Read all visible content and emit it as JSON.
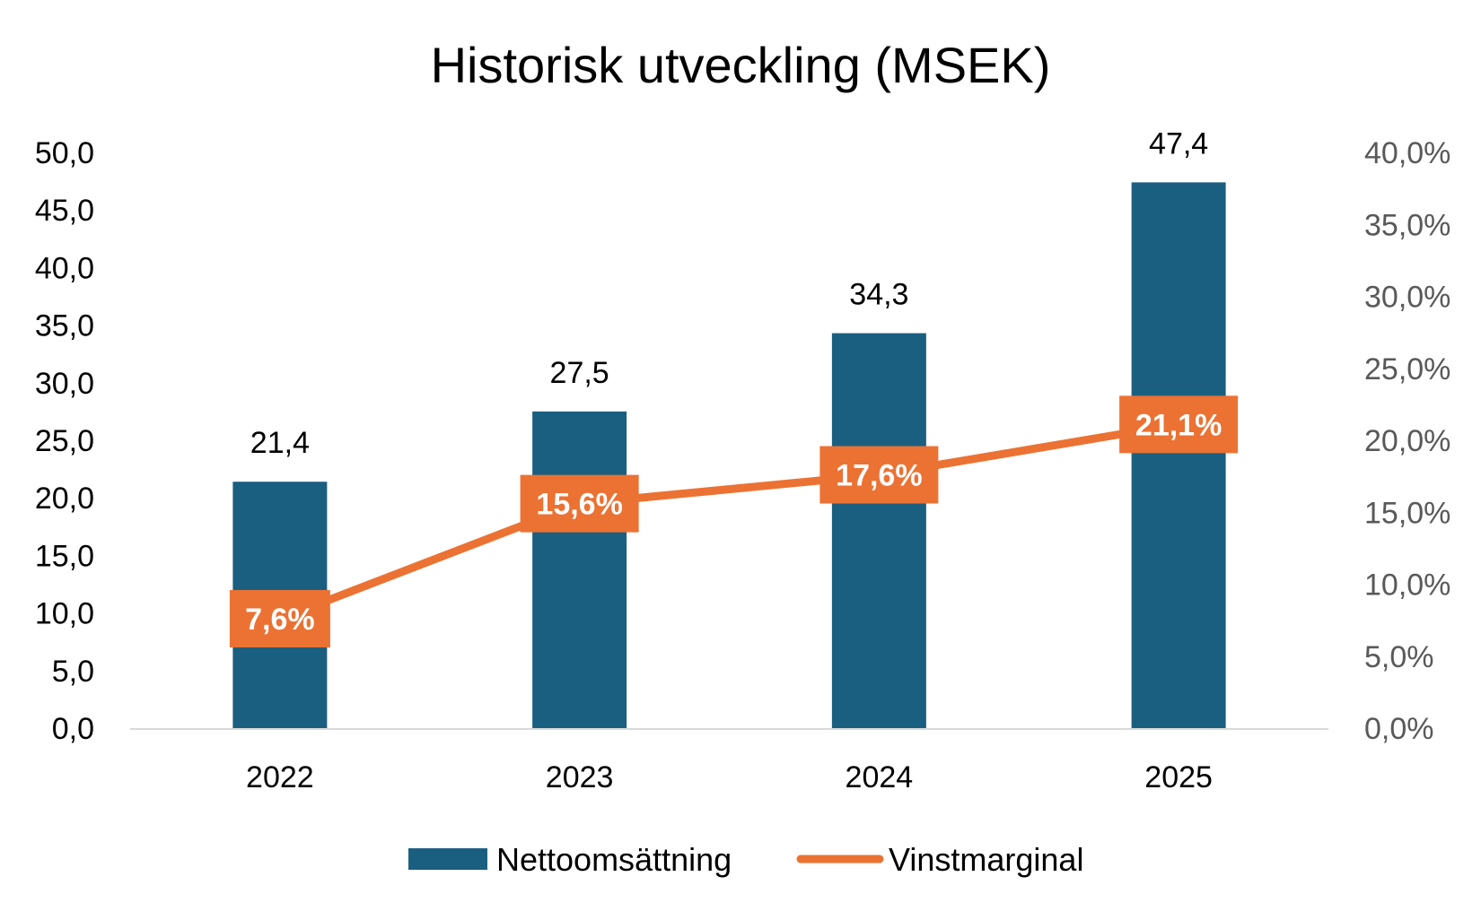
{
  "chart_data": {
    "type": "bar",
    "title": "Historisk utveckling (MSEK)",
    "categories": [
      "2022",
      "2023",
      "2024",
      "2025"
    ],
    "series": [
      {
        "name": "Nettoomsättning",
        "type": "bar",
        "axis": "left",
        "values": [
          21.4,
          27.5,
          34.3,
          47.4
        ],
        "labels": [
          "21,4",
          "27,5",
          "34,3",
          "47,4"
        ],
        "color": "#1B5F80"
      },
      {
        "name": "Vinstmarginal",
        "type": "line",
        "axis": "right",
        "values": [
          7.6,
          15.6,
          17.6,
          21.1
        ],
        "labels": [
          "7,6%",
          "15,6%",
          "17,6%",
          "21,1%"
        ],
        "color": "#EB7233"
      }
    ],
    "y_left": {
      "ylim": [
        0,
        50
      ],
      "ticks": [
        0,
        5,
        10,
        15,
        20,
        25,
        30,
        35,
        40,
        45,
        50
      ],
      "tick_labels": [
        "0,0",
        "5,0",
        "10,0",
        "15,0",
        "20,0",
        "25,0",
        "30,0",
        "35,0",
        "40,0",
        "45,0",
        "50,0"
      ]
    },
    "y_right": {
      "ylim": [
        0,
        40
      ],
      "ticks": [
        0,
        5,
        10,
        15,
        20,
        25,
        30,
        35,
        40
      ],
      "tick_labels": [
        "0,0%",
        "5,0%",
        "10,0%",
        "15,0%",
        "20,0%",
        "25,0%",
        "30,0%",
        "35,0%",
        "40,0%"
      ]
    },
    "grid": false,
    "legend": "bottom"
  }
}
